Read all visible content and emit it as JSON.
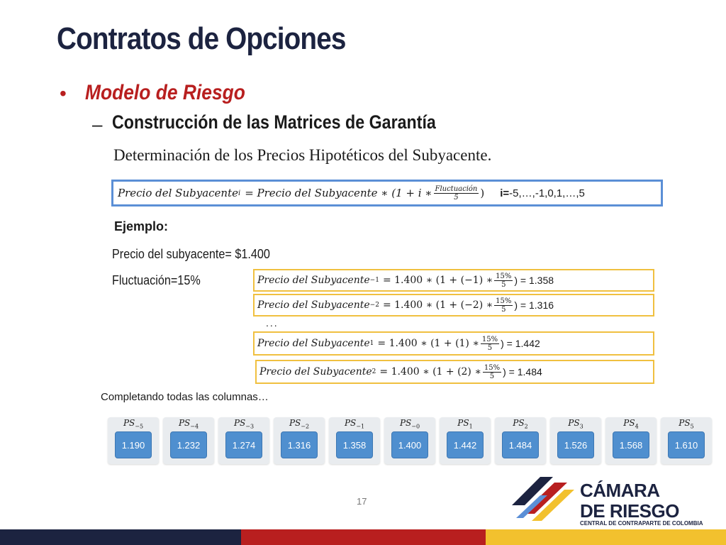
{
  "slide": {
    "title": "Contratos de Opciones",
    "bullet_level1": "Modelo de Riesgo",
    "bullet_level2": "Construcción de las Matrices de Garantía",
    "description": "Determinación de los Precios Hipotéticos del Subyacente.",
    "page_number": "17"
  },
  "formula": {
    "lhs": "Precio del Subyacente",
    "lhs_sub": "i",
    "rhs_a": "= Precio del Subyacente ∗ (1 + i ∗",
    "frac_num": "Fluctuación",
    "frac_den": "5",
    "rhs_close": ")",
    "range_label": "i=",
    "range_values": " -5,…,-1,0,1,…,5"
  },
  "example": {
    "heading": "Ejemplo:",
    "price_line": "Precio del subyacente= $1.400",
    "fluct_line": "Fluctuación=15%",
    "dots": "...",
    "completing": "Completando todas las columnas…",
    "rows": [
      {
        "sub": "−1",
        "mid": "= 1.400 ∗ (1 + (−1) ∗",
        "num": "15%",
        "den": "5",
        "result": ") = 1.358"
      },
      {
        "sub": "−2",
        "mid": "= 1.400 ∗ (1 + (−2) ∗",
        "num": "15%",
        "den": "5",
        "result": ") = 1.316"
      },
      {
        "sub": "1",
        "mid": "= 1.400 ∗ (1 + (1) ∗",
        "num": "15%",
        "den": "5",
        "result": ") = 1.442"
      },
      {
        "sub": "2",
        "mid": "= 1.400 ∗ (1 + (2) ∗",
        "num": "15%",
        "den": "5",
        "result": ") = 1.484"
      }
    ],
    "row_lhs": "Precio del Subyacente"
  },
  "ps_table": [
    {
      "sub": "−5",
      "value": "1.190"
    },
    {
      "sub": "−4",
      "value": "1.232"
    },
    {
      "sub": "−3",
      "value": "1.274"
    },
    {
      "sub": "−2",
      "value": "1.316"
    },
    {
      "sub": "−1",
      "value": "1.358"
    },
    {
      "sub": "−0",
      "value": "1.400"
    },
    {
      "sub": "1",
      "value": "1.442"
    },
    {
      "sub": "2",
      "value": "1.484"
    },
    {
      "sub": "3",
      "value": "1.526"
    },
    {
      "sub": "4",
      "value": "1.568"
    },
    {
      "sub": "5",
      "value": "1.610"
    }
  ],
  "ps_prefix": "PS",
  "logo": {
    "line1": "CÁMARA",
    "line2": "DE RIESGO",
    "line3": "CENTRAL DE CONTRAPARTE DE COLOMBIA"
  },
  "colors": {
    "title": "#1c2340",
    "accent_red": "#b81f1f",
    "formula_border": "#5b8fd6",
    "example_border": "#f0c040",
    "ps_value_bg": "#4f8fcf",
    "bar_navy": "#1c2340",
    "bar_red": "#b81f1f",
    "bar_yellow": "#f2c12e"
  }
}
